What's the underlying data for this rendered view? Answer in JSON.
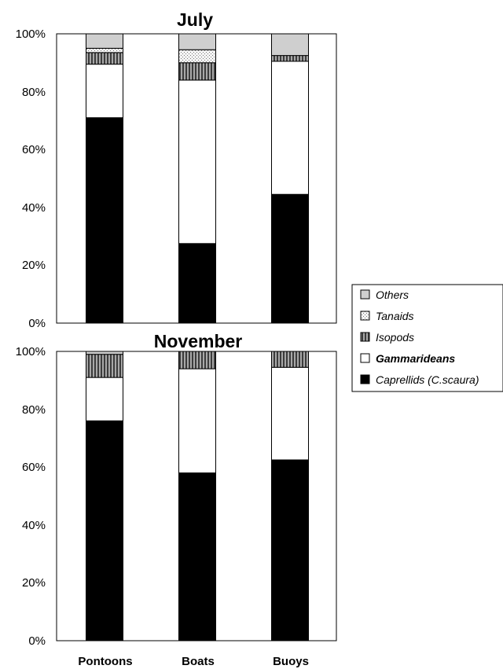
{
  "chart_data": [
    {
      "type": "bar",
      "stacked": true,
      "percent": true,
      "title": "July",
      "categories": [
        "Pontoons",
        "Boats",
        "Buoys"
      ],
      "ylim": [
        0,
        100
      ],
      "yticks": [
        "0%",
        "20%",
        "40%",
        "60%",
        "80%",
        "100%"
      ],
      "series": [
        {
          "name": "Caprellids (C.scaura)",
          "values": [
            71,
            27.5,
            44.5
          ]
        },
        {
          "name": "Gammarideans",
          "values": [
            18.5,
            56.5,
            46
          ]
        },
        {
          "name": "Isopods",
          "values": [
            4,
            6,
            2
          ]
        },
        {
          "name": "Tanaids",
          "values": [
            1.5,
            4.5,
            0
          ]
        },
        {
          "name": "Others",
          "values": [
            5,
            5.5,
            7.5
          ]
        }
      ]
    },
    {
      "type": "bar",
      "stacked": true,
      "percent": true,
      "title": "November",
      "categories": [
        "Pontoons",
        "Boats",
        "Buoys"
      ],
      "ylim": [
        0,
        100
      ],
      "yticks": [
        "0%",
        "20%",
        "40%",
        "60%",
        "80%",
        "100%"
      ],
      "series": [
        {
          "name": "Caprellids (C.scaura)",
          "values": [
            76,
            58,
            62.5
          ]
        },
        {
          "name": "Gammarideans",
          "values": [
            15,
            36,
            32
          ]
        },
        {
          "name": "Isopods",
          "values": [
            8,
            6,
            5.5
          ]
        },
        {
          "name": "Tanaids",
          "values": [
            0,
            0,
            0
          ]
        },
        {
          "name": "Others",
          "values": [
            1,
            0,
            0
          ]
        }
      ]
    }
  ],
  "legend": {
    "placement": "right",
    "items": [
      {
        "label": "Others",
        "italic": true,
        "bold": false,
        "pattern": "gray"
      },
      {
        "label": "Tanaids",
        "italic": true,
        "bold": false,
        "pattern": "dots"
      },
      {
        "label": "Isopods",
        "italic": true,
        "bold": false,
        "pattern": "vstripes"
      },
      {
        "label": "Gammarideans",
        "italic": true,
        "bold": true,
        "pattern": "white"
      },
      {
        "label": "Caprellids (C.scaura)",
        "italic": true,
        "bold": false,
        "pattern": "black"
      }
    ]
  },
  "series_styles": [
    {
      "pattern": "black",
      "fill": "#000000"
    },
    {
      "pattern": "white",
      "fill": "#ffffff"
    },
    {
      "pattern": "vstripes",
      "fill": "#7a7a7a"
    },
    {
      "pattern": "dots",
      "fill": "#eeeeee"
    },
    {
      "pattern": "gray",
      "fill": "#cfcfcf"
    }
  ]
}
